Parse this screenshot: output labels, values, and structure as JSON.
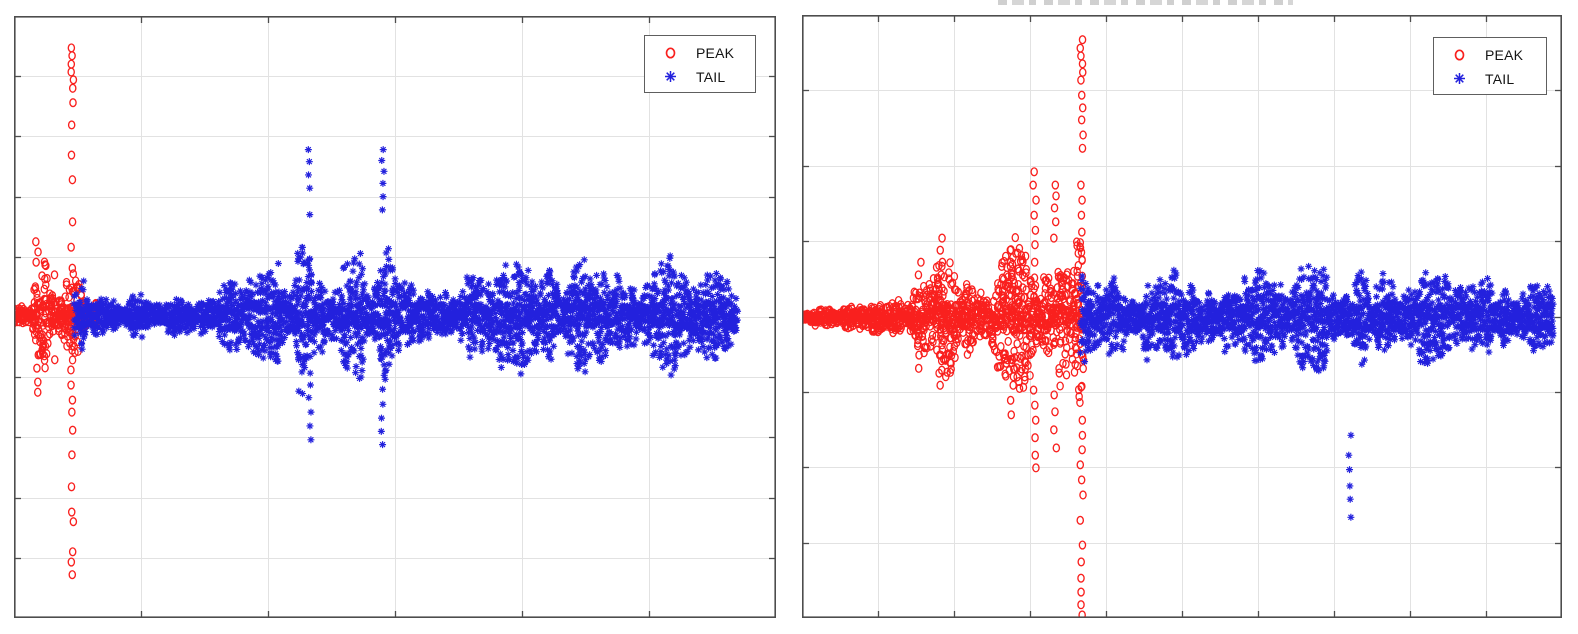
{
  "figure": {
    "background": "#ffffff",
    "cropped_title_fragment": {
      "visible": true,
      "readable": false,
      "color": "#c7c7c7"
    }
  },
  "style": {
    "grid_color": "#e2e2e2",
    "axis_color": "#4d4d4d",
    "legend_border": "#5e5e5e",
    "text_color": "#141414",
    "peak_color": "#f9201e",
    "tail_color": "#2321dd"
  },
  "chart_data": [
    {
      "id": "left-plot",
      "type": "scatter",
      "title": "",
      "xlabel": "",
      "ylabel": "",
      "tick_labels_visible": false,
      "grid": true,
      "grid_divisions": {
        "x": 6,
        "y": 10
      },
      "legend_position": "top-right",
      "units": "fractions of plot box; x: 0=left..1=right, y: 0=top..1=bottom",
      "center_y": 0.498,
      "render_seed": 42,
      "series": [
        {
          "name": "PEAK",
          "marker": "circle",
          "color": "#f9201e",
          "band": {
            "x_start": 0.0,
            "x_end": 0.107,
            "envelope": [
              [
                0.0,
                0.022
              ],
              [
                0.02,
                0.025
              ],
              [
                0.028,
                0.12
              ],
              [
                0.04,
                0.11
              ],
              [
                0.048,
                0.035
              ],
              [
                0.06,
                0.028
              ],
              [
                0.07,
                0.06
              ],
              [
                0.078,
                0.085
              ],
              [
                0.09,
                0.05
              ],
              [
                0.107,
                0.038
              ]
            ]
          },
          "outlier_columns": [
            {
              "x": 0.076,
              "ys": [
                0.053,
                0.066,
                0.08,
                0.093,
                0.106,
                0.12,
                0.144,
                0.181,
                0.231,
                0.272,
                0.342,
                0.384,
                0.419,
                0.452,
                0.588,
                0.613,
                0.638,
                0.658,
                0.688,
                0.729,
                0.782,
                0.824,
                0.84,
                0.89,
                0.907,
                0.928
              ]
            },
            {
              "x": 0.03,
              "ys": [
                0.375,
                0.392,
                0.409,
                0.563,
                0.585,
                0.608,
                0.625
              ]
            },
            {
              "x": 0.054,
              "ys": [
                0.43,
                0.571
              ]
            }
          ]
        },
        {
          "name": "TAIL",
          "marker": "asterisk",
          "color": "#2321dd",
          "band": {
            "x_start": 0.08,
            "x_end": 0.95,
            "envelope": [
              [
                0.08,
                0.075
              ],
              [
                0.088,
                0.1
              ],
              [
                0.106,
                0.045
              ],
              [
                0.125,
                0.028
              ],
              [
                0.19,
                0.04
              ],
              [
                0.28,
                0.055
              ],
              [
                0.336,
                0.075
              ],
              [
                0.36,
                0.115
              ],
              [
                0.378,
                0.135
              ],
              [
                0.395,
                0.085
              ],
              [
                0.425,
                0.07
              ],
              [
                0.455,
                0.115
              ],
              [
                0.482,
                0.132
              ],
              [
                0.505,
                0.095
              ],
              [
                0.54,
                0.1
              ],
              [
                0.572,
                0.075
              ],
              [
                0.605,
                0.112
              ],
              [
                0.632,
                0.085
              ],
              [
                0.66,
                0.105
              ],
              [
                0.69,
                0.078
              ],
              [
                0.718,
                0.072
              ],
              [
                0.748,
                0.102
              ],
              [
                0.772,
                0.098
              ],
              [
                0.8,
                0.078
              ],
              [
                0.824,
                0.082
              ],
              [
                0.855,
                0.106
              ],
              [
                0.886,
                0.08
              ],
              [
                0.92,
                0.072
              ],
              [
                0.95,
                0.055
              ]
            ]
          },
          "outlier_columns": [
            {
              "x": 0.388,
              "ys": [
                0.222,
                0.242,
                0.264,
                0.286,
                0.33,
                0.613,
                0.634,
                0.658,
                0.681,
                0.704
              ]
            },
            {
              "x": 0.484,
              "ys": [
                0.222,
                0.24,
                0.258,
                0.278,
                0.3,
                0.322,
                0.62,
                0.645,
                0.668,
                0.69,
                0.712
              ]
            }
          ]
        }
      ]
    },
    {
      "id": "right-plot",
      "type": "scatter",
      "title": "",
      "xlabel": "",
      "ylabel": "",
      "tick_labels_visible": false,
      "grid": true,
      "grid_divisions": {
        "x": 10,
        "y": 8
      },
      "legend_position": "top-right",
      "units": "fractions of plot box; x: 0=left..1=right, y: 0=top..1=bottom",
      "center_y": 0.502,
      "render_seed": 1337,
      "series": [
        {
          "name": "PEAK",
          "marker": "circle",
          "color": "#f9201e",
          "band": {
            "x_start": 0.0,
            "x_end": 0.37,
            "envelope": [
              [
                0.0,
                0.012
              ],
              [
                0.05,
                0.018
              ],
              [
                0.103,
                0.028
              ],
              [
                0.142,
                0.048
              ],
              [
                0.168,
                0.125
              ],
              [
                0.185,
                0.128
              ],
              [
                0.205,
                0.06
              ],
              [
                0.228,
                0.085
              ],
              [
                0.255,
                0.095
              ],
              [
                0.275,
                0.135
              ],
              [
                0.3,
                0.14
              ],
              [
                0.33,
                0.15
              ],
              [
                0.355,
                0.158
              ],
              [
                0.37,
                0.148
              ]
            ]
          },
          "outlier_columns": [
            {
              "x": 0.368,
              "ys": [
                0.041,
                0.055,
                0.068,
                0.081,
                0.095,
                0.108,
                0.133,
                0.154,
                0.174,
                0.199,
                0.221,
                0.282,
                0.307,
                0.332,
                0.36,
                0.386,
                0.672,
                0.697,
                0.721,
                0.746,
                0.771,
                0.796,
                0.838,
                0.879,
                0.907,
                0.934,
                0.957,
                0.978,
                0.995
              ]
            },
            {
              "x": 0.306,
              "ys": [
                0.26,
                0.282,
                0.307,
                0.332,
                0.357,
                0.381,
                0.41,
                0.436,
                0.622,
                0.647,
                0.672,
                0.701,
                0.73,
                0.751
              ]
            },
            {
              "x": 0.333,
              "ys": [
                0.282,
                0.3,
                0.32,
                0.343,
                0.37,
                0.63,
                0.658,
                0.688,
                0.718
              ]
            },
            {
              "x": 0.276,
              "ys": [
                0.39,
                0.41,
                0.431,
                0.456,
                0.614,
                0.639,
                0.663
              ]
            },
            {
              "x": 0.183,
              "ys": [
                0.37,
                0.39,
                0.41,
                0.431,
                0.453,
                0.473,
                0.539,
                0.564,
                0.589,
                0.614
              ]
            },
            {
              "x": 0.155,
              "ys": [
                0.41,
                0.431,
                0.564,
                0.586
              ]
            }
          ]
        },
        {
          "name": "TAIL",
          "marker": "asterisk",
          "color": "#2321dd",
          "band": {
            "x_start": 0.368,
            "x_end": 0.988,
            "envelope": [
              [
                0.368,
                0.135
              ],
              [
                0.392,
                0.105
              ],
              [
                0.42,
                0.08
              ],
              [
                0.445,
                0.085
              ],
              [
                0.48,
                0.095
              ],
              [
                0.511,
                0.075
              ],
              [
                0.543,
                0.09
              ],
              [
                0.575,
                0.1
              ],
              [
                0.609,
                0.075
              ],
              [
                0.655,
                0.085
              ],
              [
                0.69,
                0.09
              ],
              [
                0.714,
                0.075
              ],
              [
                0.774,
                0.095
              ],
              [
                0.81,
                0.085
              ],
              [
                0.846,
                0.07
              ],
              [
                0.892,
                0.085
              ],
              [
                0.92,
                0.08
              ],
              [
                0.945,
                0.065
              ],
              [
                0.988,
                0.052
              ]
            ]
          },
          "outlier_columns": [
            {
              "x": 0.721,
              "ys": [
                0.697,
                0.73,
                0.754,
                0.781,
                0.803,
                0.833
              ]
            }
          ]
        }
      ]
    }
  ]
}
